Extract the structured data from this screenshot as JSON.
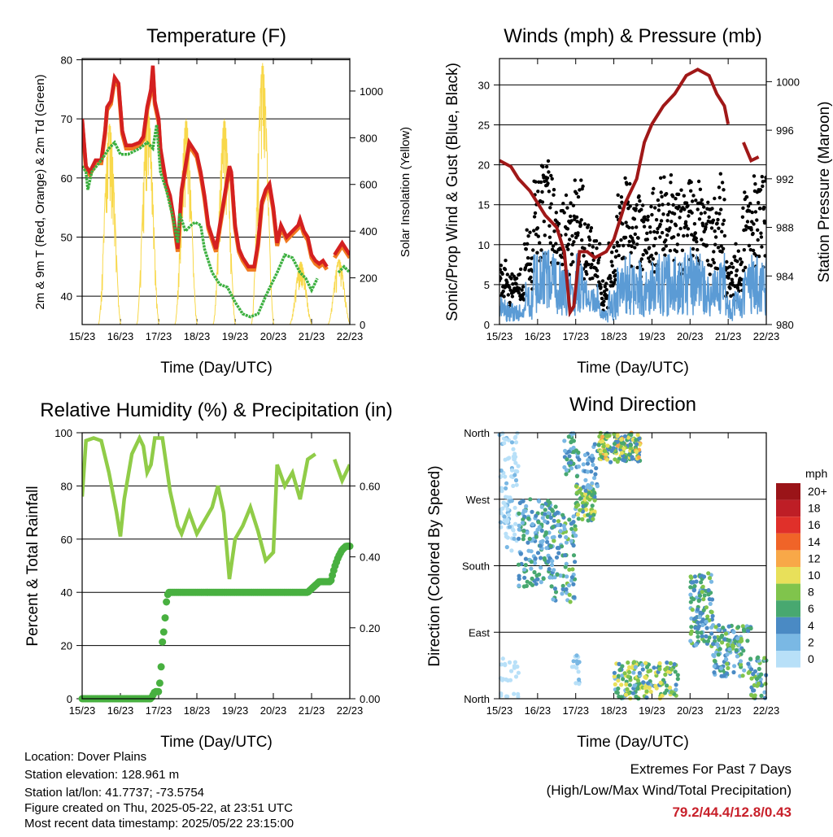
{
  "x_ticks": [
    "15/23",
    "16/23",
    "17/23",
    "18/23",
    "19/23",
    "20/23",
    "21/23",
    "22/23"
  ],
  "x_label": "Time (Day/UTC)",
  "chart_data": [
    {
      "type": "line",
      "title": "Temperature (F)",
      "ylabel": "2m & 9m T (Red, Orange) & 2m Td (Green)",
      "y2label": "Solar Insolation (Yellow)",
      "ylim": [
        35.2,
        80.2
      ],
      "y_ticks": [
        "40",
        "50",
        "60",
        "70",
        "80"
      ],
      "y_tick_values": [
        40,
        50,
        60,
        70,
        80
      ],
      "y2lim": [
        0,
        1139
      ],
      "y2_ticks": [
        "0",
        "200",
        "400",
        "600",
        "800",
        "1000"
      ],
      "y2_tick_values": [
        0,
        200,
        400,
        600,
        800,
        1000
      ],
      "x_days": [
        0,
        0.1,
        0.2,
        0.35,
        0.5,
        0.6,
        0.65,
        0.75,
        0.85,
        0.95,
        1.05,
        1.15,
        1.3,
        1.5,
        1.6,
        1.7,
        1.8,
        1.85,
        1.9,
        2.0,
        2.05,
        2.2,
        2.3,
        2.4,
        2.5,
        2.6,
        2.7,
        2.8,
        2.9,
        3.0,
        3.1,
        3.2,
        3.3,
        3.4,
        3.5,
        3.6,
        3.7,
        3.8,
        3.85,
        3.9,
        4.0,
        4.1,
        4.2,
        4.35,
        4.5,
        4.6,
        4.7,
        4.8,
        4.9,
        5.0,
        5.1,
        5.2,
        5.35,
        5.5,
        5.65,
        5.7,
        5.8,
        5.9,
        6.0,
        6.1,
        6.2,
        6.3,
        6.4,
        6.5,
        6.6,
        6.7,
        6.8,
        6.9,
        7.0
      ],
      "series": [
        {
          "name": "2m T",
          "color": "#d42020",
          "values": [
            70,
            62,
            61,
            63,
            63,
            68,
            72,
            73,
            77,
            76,
            68,
            65.5,
            65.5,
            66,
            67,
            72,
            75,
            79,
            73,
            70,
            65,
            59,
            57,
            53,
            48,
            58,
            62,
            66,
            65,
            64,
            61,
            57,
            52,
            50,
            48,
            52,
            56,
            60,
            62,
            61,
            52,
            48,
            46.5,
            45,
            45,
            49,
            56,
            58,
            59,
            55,
            49,
            52,
            50,
            51,
            52,
            53,
            51,
            50,
            47,
            46,
            45.5,
            46,
            45,
            null,
            47,
            48,
            49,
            48,
            47
          ]
        },
        {
          "name": "9m T",
          "color": "#f07a20",
          "values": [
            69.5,
            61.5,
            60.5,
            62.5,
            62.5,
            67.5,
            71.5,
            72.5,
            76.5,
            75.5,
            67.5,
            65,
            65,
            65.5,
            66.5,
            71.5,
            74.5,
            78,
            72.5,
            69.5,
            64.5,
            58.5,
            56.5,
            52.5,
            47.5,
            57.5,
            61.5,
            65.5,
            64.5,
            63.5,
            60.5,
            56.5,
            51.5,
            49.5,
            47.5,
            51.5,
            55.5,
            59.5,
            61.5,
            60.5,
            51.5,
            47.5,
            46,
            44.5,
            44.5,
            48.5,
            55.5,
            57.5,
            58.5,
            54.5,
            48.5,
            51.5,
            49.5,
            50.5,
            51.5,
            52.5,
            50.5,
            49.5,
            46.5,
            45.5,
            45,
            45.5,
            44.5,
            null,
            46.5,
            47.5,
            48.5,
            47.5,
            46.5
          ]
        }
      ],
      "dewpoint": {
        "name": "2m Td",
        "color": "#3cb040",
        "x_days": [
          0,
          0.1,
          0.15,
          0.25,
          0.5,
          0.7,
          0.85,
          1.0,
          1.2,
          1.5,
          1.7,
          1.85,
          1.95,
          2.05,
          2.2,
          2.35,
          2.5,
          2.55,
          2.7,
          2.85,
          2.95,
          3.1,
          3.2,
          3.4,
          3.6,
          3.8,
          4.0,
          4.2,
          4.4,
          4.6,
          4.8,
          4.95,
          5.1,
          5.3,
          5.5,
          5.7,
          5.85,
          6.0,
          6.15,
          6.4,
          6.7,
          6.85,
          7.0
        ],
        "values": [
          62,
          61,
          58,
          61,
          63,
          65,
          66,
          64,
          64,
          65,
          66,
          65,
          69,
          61,
          58,
          54,
          49,
          54,
          51,
          52,
          52.5,
          52,
          48,
          44,
          42,
          41.5,
          39,
          37,
          36.5,
          37,
          40,
          42,
          44,
          47,
          46.5,
          44,
          43,
          41,
          43,
          null,
          44,
          45,
          44
        ]
      },
      "solar": {
        "name": "Solar Insolation",
        "color": "#f8d84a",
        "noon_day_offset": 0.72,
        "daily_peaks": [
          860,
          930,
          880,
          880,
          1120,
          270,
          280
        ]
      }
    },
    {
      "type": "scatter",
      "title": "Winds (mph) & Pressure (mb)",
      "ylabel": "Sonic/Prop Wind & Gust (Blue, Black)",
      "y2label": "Station Pressure (Maroon)",
      "ylim": [
        0,
        33.3
      ],
      "y_ticks": [
        "0",
        "5",
        "10",
        "15",
        "20",
        "25",
        "30"
      ],
      "y_tick_values": [
        0,
        5,
        10,
        15,
        20,
        25,
        30
      ],
      "y2lim": [
        980,
        1001.9
      ],
      "y2_ticks": [
        "980",
        "984",
        "988",
        "992",
        "996",
        "1000"
      ],
      "y2_tick_values": [
        980,
        984,
        988,
        992,
        996,
        1000
      ],
      "wind_mean_quarter_day": [
        2,
        1.5,
        1.5,
        3,
        5,
        5.5,
        5,
        4.5,
        4,
        5,
        3.5,
        3,
        1,
        2.5,
        4.5,
        5,
        4.5,
        4,
        4.5,
        5,
        5,
        4.5,
        5.5,
        5,
        4.5,
        4,
        5,
        2,
        2.5,
        4.5,
        5,
        5
      ],
      "max_wind": 12.8,
      "max_gust": 31.2,
      "wind_color": "#5b9bd5",
      "gust_color": "#000000",
      "pressure": {
        "color": "#a01818",
        "x_days": [
          0,
          0.3,
          0.5,
          0.8,
          1.0,
          1.2,
          1.5,
          1.7,
          1.85,
          1.95,
          2.1,
          2.3,
          2.5,
          2.8,
          3.0,
          3.3,
          3.6,
          3.8,
          4.0,
          4.3,
          4.6,
          4.9,
          5.2,
          5.5,
          5.7,
          5.9,
          6.0,
          6.2,
          6.4,
          6.6,
          6.8
        ],
        "values": [
          993.5,
          993,
          992,
          991,
          990,
          989,
          988,
          986,
          981,
          981.5,
          986,
          986,
          985.5,
          986,
          987,
          990,
          992,
          995,
          996.5,
          998,
          999,
          1000.5,
          1001,
          1000.5,
          999,
          998,
          996.5,
          null,
          995,
          993.5,
          993.8
        ]
      }
    },
    {
      "type": "line",
      "title": "Relative Humidity (%) & Precipitation (in)",
      "ylabel": "Percent & Total Rainfall",
      "ylim": [
        0,
        100
      ],
      "y_ticks": [
        "0",
        "20",
        "40",
        "60",
        "80",
        "100"
      ],
      "y_tick_values": [
        0,
        20,
        40,
        60,
        80,
        100
      ],
      "y2lim": [
        0,
        0.75
      ],
      "y2_ticks": [
        "0.00",
        "0.20",
        "0.40",
        "0.60"
      ],
      "y2_tick_values": [
        0,
        0.2,
        0.4,
        0.6
      ],
      "rh": {
        "color": "#90cc48",
        "x_days": [
          0,
          0.1,
          0.3,
          0.5,
          0.7,
          0.9,
          1.0,
          1.1,
          1.3,
          1.5,
          1.6,
          1.7,
          1.8,
          1.9,
          2.1,
          2.3,
          2.5,
          2.6,
          2.8,
          3.0,
          3.2,
          3.4,
          3.55,
          3.7,
          3.85,
          4.0,
          4.2,
          4.4,
          4.6,
          4.8,
          5.0,
          5.1,
          5.3,
          5.5,
          5.7,
          5.9,
          6.1,
          6.3,
          6.6,
          6.8,
          7.0
        ],
        "values": [
          76,
          97,
          98,
          97,
          85,
          70,
          61,
          75,
          92,
          98,
          95,
          85,
          88,
          98,
          98,
          78,
          65,
          62,
          70,
          62,
          67,
          72,
          80,
          70,
          45,
          60,
          65,
          72,
          63,
          52,
          55,
          88,
          80,
          85,
          75,
          90,
          92,
          null,
          90,
          82,
          88
        ]
      },
      "precip": {
        "color": "#48b040",
        "x_days": [
          0,
          1.8,
          1.9,
          2.0,
          2.05,
          2.1,
          2.15,
          2.2,
          2.25,
          3.0,
          4.0,
          5.0,
          5.9,
          6.0,
          6.1,
          6.2,
          6.5,
          6.6,
          6.7,
          6.8,
          6.9,
          7.0
        ],
        "values": [
          0,
          0,
          0.02,
          0.02,
          0.06,
          0.16,
          0.2,
          0.27,
          0.3,
          0.3,
          0.3,
          0.3,
          0.3,
          0.31,
          0.32,
          0.33,
          0.33,
          0.37,
          0.4,
          0.42,
          0.43,
          0.43
        ]
      }
    },
    {
      "type": "scatter",
      "title": "Wind Direction",
      "ylabel": "Direction (Colored By Speed)",
      "y_ticks": [
        "North",
        "East",
        "South",
        "West",
        "North"
      ],
      "y_tick_values": [
        0,
        90,
        180,
        270,
        360
      ],
      "legend": {
        "title": "mph",
        "placement": "right",
        "labels": [
          "20+",
          "18",
          "16",
          "14",
          "12",
          "10",
          "8",
          "6",
          "4",
          "2",
          "0"
        ],
        "colors": [
          "#9a1418",
          "#be1e26",
          "#e0302a",
          "#f06428",
          "#f8a848",
          "#e8e05a",
          "#80c44c",
          "#48a870",
          "#4a8ac4",
          "#7ab8e4",
          "#b8e0f8"
        ]
      },
      "clusters": [
        {
          "t": [
            0,
            0.5
          ],
          "dir": [
            200,
            360
          ],
          "speed": [
            0,
            3
          ],
          "n": 90
        },
        {
          "t": [
            0,
            0.5
          ],
          "dir": [
            0,
            60
          ],
          "speed": [
            0,
            2
          ],
          "n": 25
        },
        {
          "t": [
            0.5,
            1.4
          ],
          "dir": [
            150,
            270
          ],
          "speed": [
            2,
            8
          ],
          "n": 160
        },
        {
          "t": [
            1.4,
            2.0
          ],
          "dir": [
            130,
            260
          ],
          "speed": [
            2,
            9
          ],
          "n": 90
        },
        {
          "t": [
            1.7,
            2.1
          ],
          "dir": [
            300,
            360
          ],
          "speed": [
            2,
            8
          ],
          "n": 40
        },
        {
          "t": [
            2.0,
            2.5
          ],
          "dir": [
            240,
            290
          ],
          "speed": [
            4,
            12
          ],
          "n": 80
        },
        {
          "t": [
            2.2,
            2.6
          ],
          "dir": [
            280,
            345
          ],
          "speed": [
            2,
            6
          ],
          "n": 30
        },
        {
          "t": [
            2.6,
            3.7
          ],
          "dir": [
            320,
            360
          ],
          "speed": [
            4,
            13
          ],
          "n": 170
        },
        {
          "t": [
            3.0,
            4.7
          ],
          "dir": [
            0,
            50
          ],
          "speed": [
            3,
            12
          ],
          "n": 170
        },
        {
          "t": [
            1.9,
            2.1
          ],
          "dir": [
            0,
            60
          ],
          "speed": [
            1,
            4
          ],
          "n": 15
        },
        {
          "t": [
            5.0,
            5.6
          ],
          "dir": [
            70,
            170
          ],
          "speed": [
            3,
            9
          ],
          "n": 110
        },
        {
          "t": [
            5.6,
            6.6
          ],
          "dir": [
            30,
            100
          ],
          "speed": [
            2,
            9
          ],
          "n": 130
        },
        {
          "t": [
            6.6,
            7.0
          ],
          "dir": [
            0,
            60
          ],
          "speed": [
            2,
            10
          ],
          "n": 40
        }
      ]
    }
  ],
  "info": {
    "location": "Location: Dover Plains",
    "elevation": "Station elevation: 128.961 m",
    "latlon": "Station lat/lon: 41.7737; -73.5754",
    "created": "Figure created on Thu, 2025-05-22, at 23:51 UTC",
    "recent": "Most recent data timestamp: 2025/05/22 23:15:00"
  },
  "extremes": {
    "heading": "Extremes For Past 7 Days",
    "subheading": "(High/Low/Max Wind/Total Precipitation)",
    "values": "79.2/44.4/12.8/0.43"
  }
}
